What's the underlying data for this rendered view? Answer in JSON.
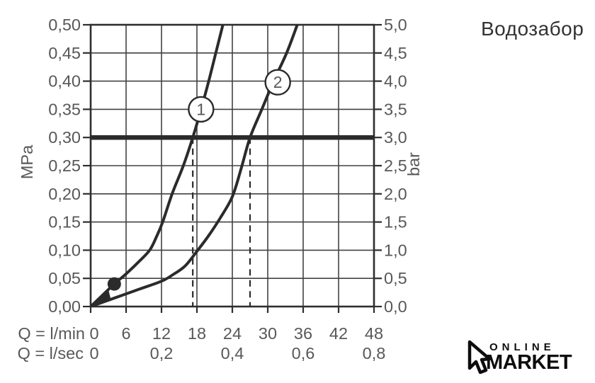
{
  "page": {
    "title": "Водозабор"
  },
  "logo": {
    "top": "ONLINE",
    "bottom": "MARKET",
    "icon": "cursor-arrow-icon",
    "color": "#0d0d0d"
  },
  "chart_data": {
    "type": "line",
    "title": "Водозабор",
    "xlabel_primary": "Q = l/min",
    "xlabel_secondary": "Q = l/sec",
    "ylabel_left": "MPa",
    "ylabel_right": "bar",
    "x_range_lmin": [
      0,
      48
    ],
    "y_range_mpa": [
      0,
      0.5
    ],
    "y_range_bar": [
      0,
      5.0
    ],
    "grid": true,
    "x_ticks_lmin_values": [
      0,
      6,
      12,
      18,
      24,
      30,
      36,
      42,
      48
    ],
    "x_ticks_lmin_labels": [
      "0",
      "6",
      "12",
      "18",
      "24",
      "30",
      "36",
      "42",
      "48"
    ],
    "x_ticks_lsec_values": [
      0,
      12,
      24,
      36,
      48
    ],
    "x_ticks_lsec_labels": [
      "0",
      "0,2",
      "0,4",
      "0,6",
      "0,8"
    ],
    "y_ticks_mpa_values": [
      0,
      0.05,
      0.1,
      0.15,
      0.2,
      0.25,
      0.3,
      0.35,
      0.4,
      0.45,
      0.5
    ],
    "y_ticks_mpa_labels": [
      "0,00",
      "0,05",
      "0,10",
      "0,15",
      "0,20",
      "0,25",
      "0,30",
      "0,35",
      "0,40",
      "0,45",
      "0,50"
    ],
    "y_ticks_bar_labels": [
      "0,0",
      "0,5",
      "1,0",
      "1,5",
      "2,0",
      "2,5",
      "3,0",
      "3,5",
      "4,0",
      "4,5",
      "5,0"
    ],
    "series": [
      {
        "name": "1",
        "points": [
          [
            0,
            0
          ],
          [
            2,
            0.02
          ],
          [
            4,
            0.04
          ],
          [
            6,
            0.058
          ],
          [
            8,
            0.078
          ],
          [
            10,
            0.1
          ],
          [
            11.2,
            0.125
          ],
          [
            12.2,
            0.15
          ],
          [
            13.8,
            0.2
          ],
          [
            15.7,
            0.25
          ],
          [
            17.3,
            0.3
          ],
          [
            18.7,
            0.35
          ],
          [
            20,
            0.4
          ],
          [
            21.2,
            0.45
          ],
          [
            22.4,
            0.5
          ]
        ],
        "label_marker": {
          "text": "1",
          "lmin": 18.7,
          "mpa": 0.35
        }
      },
      {
        "name": "2",
        "points": [
          [
            0,
            0
          ],
          [
            4,
            0.015
          ],
          [
            8,
            0.03
          ],
          [
            12,
            0.045
          ],
          [
            14,
            0.057
          ],
          [
            16,
            0.072
          ],
          [
            18,
            0.098
          ],
          [
            20,
            0.126
          ],
          [
            22,
            0.158
          ],
          [
            24,
            0.195
          ],
          [
            25.5,
            0.245
          ],
          [
            27,
            0.3
          ],
          [
            29,
            0.35
          ],
          [
            31,
            0.4
          ],
          [
            33.2,
            0.45
          ],
          [
            35,
            0.5
          ]
        ],
        "label_marker": {
          "text": "2",
          "lmin": 31.7,
          "mpa": 0.398
        }
      }
    ],
    "reference_line_mpa": 0.3,
    "dashed_drop_lines_lmin": [
      17.3,
      27
    ],
    "marker_dot": {
      "lmin": 4,
      "mpa": 0.04
    },
    "origin_arrow": true,
    "colors": {
      "curve": "#2b2b2b",
      "grid": "#424242",
      "axis": "#2e2e2e",
      "tick_text": "#58585a",
      "reference_line": "#2b2b2b",
      "circle_fill": "#ffffff",
      "dot_fill": "#2b2b2b"
    }
  }
}
